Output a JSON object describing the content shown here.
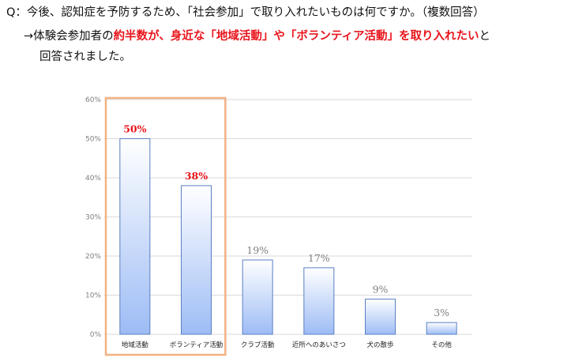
{
  "question": "Q：今後、認知症を予防するため、「社会参加」で取り入れたいものは何ですか。（複数回答）",
  "answer": {
    "p1": "→体験会参加者の",
    "h1": "約半数が、",
    "p2": "身近な「地域活動」や「ボランティア活動」を取り入れたい",
    "p3": "と",
    "line2": "回答されました。"
  },
  "colors": {
    "highlight": "#e8141b",
    "bar_top": "#ffffff",
    "bar_bottom": "#9dbcf5",
    "bar_stroke": "#5b7fc4",
    "box": "#f4b183",
    "grid": "#d9d9d9",
    "label_gray": "#7f7f7f"
  },
  "chart_data": {
    "type": "bar",
    "categories": [
      "地域活動",
      "ボランティア活動",
      "クラブ活動",
      "近所へのあいさつ",
      "犬の散歩",
      "その他"
    ],
    "values": [
      50,
      38,
      19,
      17,
      9,
      3
    ],
    "data_labels": [
      "50%",
      "38%",
      "19%",
      "17%",
      "9%",
      "3%"
    ],
    "highlighted": [
      true,
      true,
      false,
      false,
      false,
      false
    ],
    "ylim": [
      0,
      60
    ],
    "yticks": [
      0,
      10,
      20,
      30,
      40,
      50,
      60
    ],
    "ytick_labels": [
      "0%",
      "10%",
      "20%",
      "30%",
      "40%",
      "50%",
      "60%"
    ],
    "grid": true,
    "title": "",
    "xlabel": "",
    "ylabel": ""
  }
}
